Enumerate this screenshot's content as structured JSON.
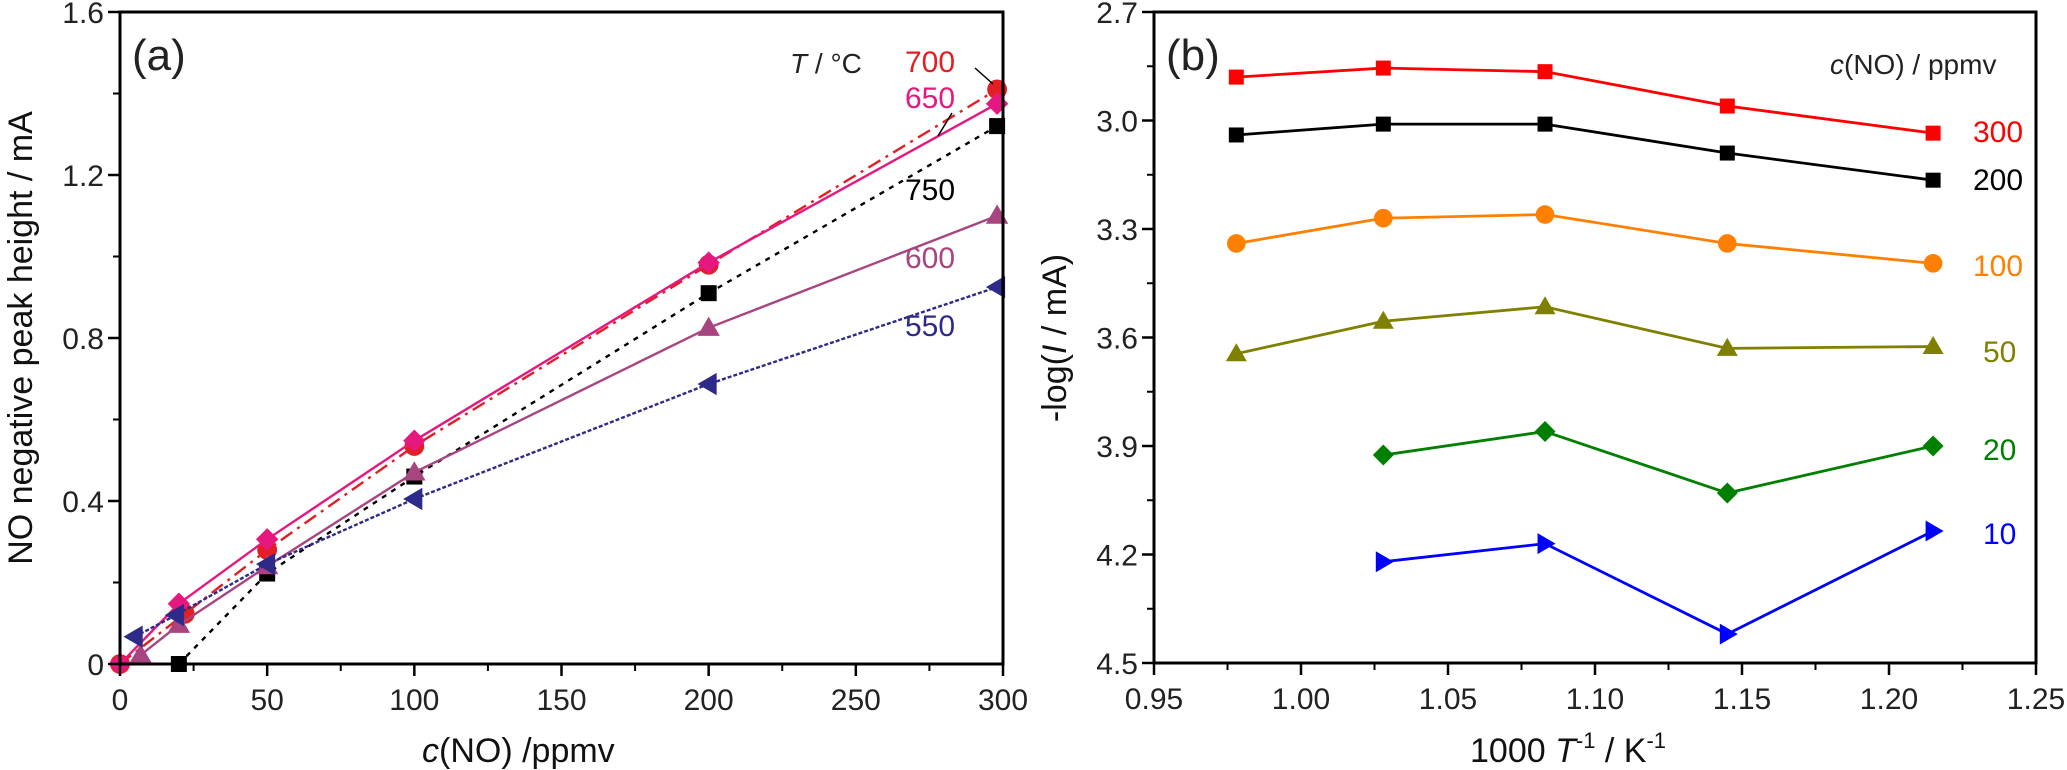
{
  "chart_data": [
    {
      "type": "line",
      "panel_label": "(a)",
      "title": "",
      "xlabel_italic": "c",
      "xlabel_rest": "(NO) /ppmv",
      "ylabel": "NO negative peak height / mA",
      "xlim": [
        0,
        300
      ],
      "ylim": [
        0,
        1.6
      ],
      "xticks": [
        0,
        50,
        100,
        150,
        200,
        250,
        300
      ],
      "xtick_labels": [
        "0",
        "50",
        "100",
        "150",
        "200",
        "250",
        "300"
      ],
      "xminor": [
        25,
        75,
        125,
        175,
        225,
        275
      ],
      "yticks": [
        0,
        0.4,
        0.8,
        1.2,
        1.6
      ],
      "ytick_labels": [
        "0",
        "0.4",
        "0.8",
        "1.2",
        "1.6"
      ],
      "yminor": [
        0.2,
        0.6,
        1.0,
        1.4
      ],
      "grid": false,
      "legend_title_italic": "T",
      "legend_title_rest": " / °C",
      "series": [
        {
          "name": "700",
          "color": "#e31e24",
          "marker": "circle",
          "line": "dashdot",
          "x": [
            0,
            22,
            50,
            100,
            200,
            298
          ],
          "y": [
            0,
            0.123,
            0.28,
            0.535,
            0.98,
            1.41
          ]
        },
        {
          "name": "650",
          "color": "#e6177f",
          "marker": "diamond",
          "line": "solid",
          "x": [
            0,
            20,
            50,
            100,
            200,
            298
          ],
          "y": [
            0,
            0.148,
            0.306,
            0.548,
            0.985,
            1.375
          ]
        },
        {
          "name": "750",
          "color": "#000000",
          "marker": "square",
          "line": "dotted",
          "x": [
            20,
            50,
            100,
            200,
            298
          ],
          "y": [
            0.0,
            0.222,
            0.46,
            0.91,
            1.32
          ]
        },
        {
          "name": "600",
          "color": "#a8447f",
          "marker": "triangle-up",
          "line": "solid",
          "x": [
            7,
            20,
            50,
            100,
            200,
            298
          ],
          "y": [
            0.022,
            0.096,
            0.24,
            0.47,
            0.825,
            1.1
          ]
        },
        {
          "name": "550",
          "color": "#2e2a8a",
          "marker": "triangle-left",
          "line": "shortdash",
          "x": [
            5,
            19,
            50,
            100,
            200,
            298
          ],
          "y": [
            0.067,
            0.12,
            0.245,
            0.405,
            0.687,
            0.925
          ]
        }
      ]
    },
    {
      "type": "line",
      "panel_label": "(b)",
      "title": "",
      "xlabel": "1000 T⁻¹ / K⁻¹",
      "xlabel_parts": [
        "1000 ",
        "T",
        "-1",
        "  / K",
        "-1"
      ],
      "ylabel_parts": [
        "-log(",
        "I",
        " / mA)"
      ],
      "xlim": [
        0.95,
        1.25
      ],
      "ylim": [
        2.7,
        4.5
      ],
      "y_inverted": true,
      "xticks": [
        0.95,
        1.0,
        1.05,
        1.1,
        1.15,
        1.2,
        1.25
      ],
      "xtick_labels": [
        "0.95",
        "1.00",
        "1.05",
        "1.10",
        "1.15",
        "1.20",
        "1.25"
      ],
      "xminor": [
        0.975,
        1.025,
        1.075,
        1.125,
        1.175,
        1.225
      ],
      "yticks": [
        2.7,
        3.0,
        3.3,
        3.6,
        3.9,
        4.2,
        4.5
      ],
      "ytick_labels": [
        "2.7",
        "3.0",
        "3.3",
        "3.6",
        "3.9",
        "4.2",
        "4.5"
      ],
      "yminor": [
        2.85,
        3.15,
        3.45,
        3.75,
        4.05,
        4.35
      ],
      "grid": false,
      "legend_title_italic": "c",
      "legend_title_rest": "(NO) / ppmv",
      "series": [
        {
          "name": "300",
          "color": "#ff0000",
          "marker": "square",
          "x": [
            0.978,
            1.028,
            1.083,
            1.145,
            1.215
          ],
          "y": [
            2.88,
            2.855,
            2.865,
            2.96,
            3.035
          ]
        },
        {
          "name": "200",
          "color": "#000000",
          "marker": "square",
          "x": [
            0.978,
            1.028,
            1.083,
            1.145,
            1.215
          ],
          "y": [
            3.04,
            3.01,
            3.01,
            3.09,
            3.165
          ]
        },
        {
          "name": "100",
          "color": "#ff8000",
          "marker": "circle",
          "x": [
            0.978,
            1.028,
            1.083,
            1.145,
            1.215
          ],
          "y": [
            3.34,
            3.27,
            3.26,
            3.34,
            3.395
          ]
        },
        {
          "name": "50",
          "color": "#808000",
          "marker": "triangle-up",
          "x": [
            0.978,
            1.028,
            1.083,
            1.145,
            1.215
          ],
          "y": [
            3.645,
            3.555,
            3.515,
            3.63,
            3.625
          ]
        },
        {
          "name": "20",
          "color": "#007f00",
          "marker": "diamond",
          "x": [
            1.028,
            1.083,
            1.145,
            1.215
          ],
          "y": [
            3.925,
            3.86,
            4.03,
            3.9
          ]
        },
        {
          "name": "10",
          "color": "#0000ff",
          "marker": "triangle-right",
          "x": [
            1.028,
            1.083,
            1.145,
            1.215
          ],
          "y": [
            4.22,
            4.17,
            4.42,
            4.135
          ]
        }
      ]
    }
  ]
}
